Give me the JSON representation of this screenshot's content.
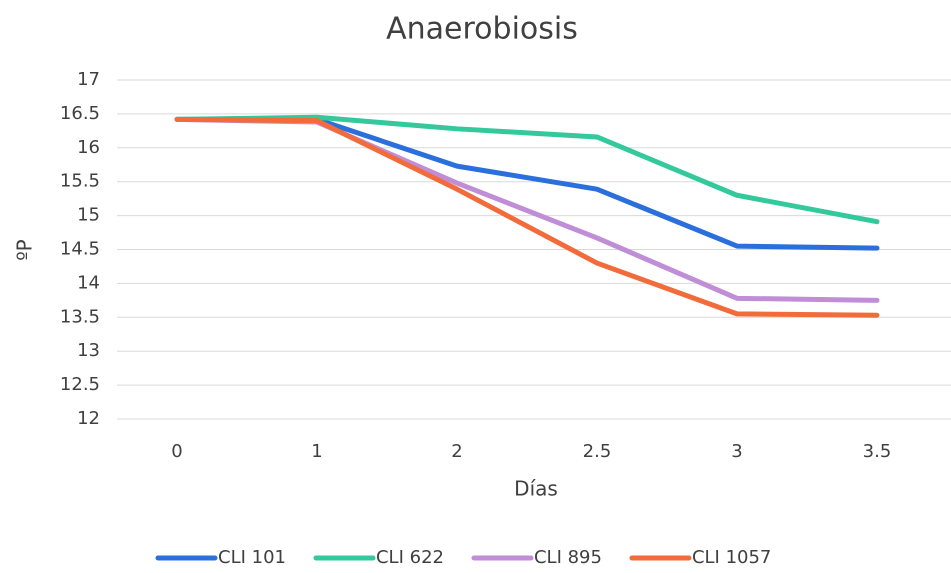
{
  "chart_data": {
    "type": "line",
    "title": "Anaerobiosis",
    "x_label": "Días",
    "y_label": "ºP",
    "categories": [
      "0",
      "1",
      "2",
      "2.5",
      "3",
      "3.5"
    ],
    "series": [
      {
        "name": "CLI 101",
        "color": "#2a6fdb",
        "values": [
          16.42,
          16.42,
          15.73,
          15.39,
          14.55,
          14.52
        ]
      },
      {
        "name": "CLI 622",
        "color": "#33c99c",
        "values": [
          16.42,
          16.45,
          16.28,
          16.16,
          15.3,
          14.91
        ]
      },
      {
        "name": "CLI 895",
        "color": "#c08ed6",
        "values": [
          16.42,
          16.38,
          15.48,
          14.67,
          13.78,
          13.75
        ]
      },
      {
        "name": "CLI 1057",
        "color": "#f26b3a",
        "values": [
          16.42,
          16.4,
          15.39,
          14.3,
          13.55,
          13.53
        ]
      }
    ],
    "ylim": [
      12,
      17
    ],
    "yticks": [
      12,
      12.5,
      13,
      13.5,
      14,
      14.5,
      15,
      15.5,
      16,
      16.5,
      17
    ],
    "grid": true,
    "legend": "bottom"
  }
}
